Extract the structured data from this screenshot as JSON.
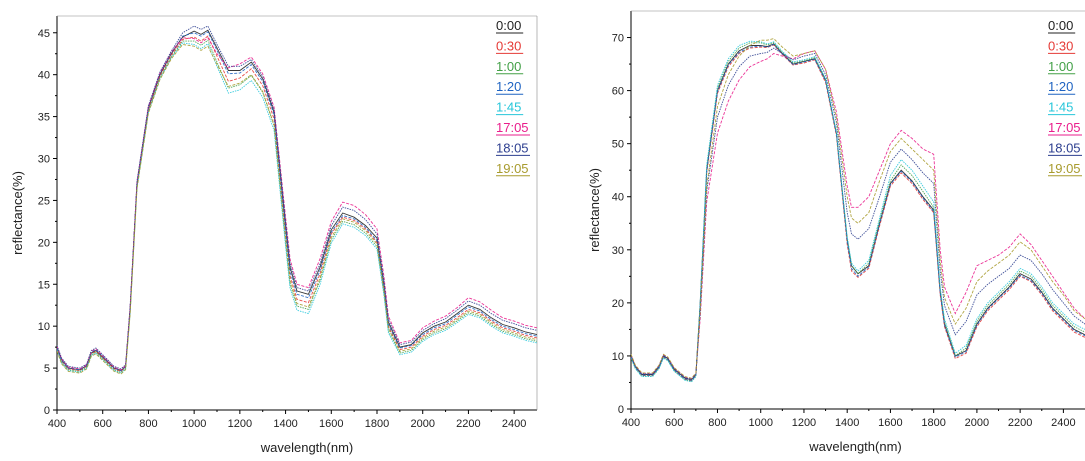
{
  "chart_data": [
    {
      "type": "line",
      "title": "",
      "xlabel": "wavelength(nm)",
      "ylabel": "reflectance(%)",
      "xlim": [
        400,
        2500
      ],
      "ylim": [
        0,
        47
      ],
      "xticks": [
        400,
        600,
        800,
        1000,
        1200,
        1400,
        1600,
        1800,
        2000,
        2200,
        2400
      ],
      "yticks": [
        0,
        5,
        10,
        15,
        20,
        25,
        30,
        35,
        40,
        45
      ],
      "grid": false,
      "legend_position": "top-right",
      "x": [
        400,
        420,
        450,
        500,
        530,
        550,
        570,
        600,
        650,
        680,
        700,
        720,
        750,
        800,
        850,
        900,
        950,
        1000,
        1030,
        1060,
        1100,
        1150,
        1200,
        1250,
        1300,
        1350,
        1400,
        1420,
        1450,
        1500,
        1550,
        1600,
        1650,
        1700,
        1750,
        1800,
        1830,
        1850,
        1900,
        1950,
        2000,
        2050,
        2100,
        2150,
        2200,
        2250,
        2300,
        2350,
        2400,
        2450,
        2500
      ],
      "series": [
        {
          "name": "0:00",
          "color": "#222222",
          "values": [
            7.5,
            6.0,
            5.0,
            4.8,
            5.3,
            6.8,
            7.1,
            6.3,
            5.0,
            4.7,
            5.2,
            12,
            27,
            36,
            40,
            42.5,
            44.5,
            45.2,
            44.8,
            45.3,
            43.2,
            40.5,
            40.5,
            41.5,
            39.5,
            35.5,
            22,
            17,
            14.2,
            13.8,
            17,
            21.5,
            23.5,
            23,
            22,
            20.5,
            15,
            10.5,
            7.5,
            7.8,
            9.2,
            10,
            10.5,
            11.5,
            12.5,
            12,
            11,
            10.2,
            9.8,
            9.3,
            9.0
          ]
        },
        {
          "name": "0:30",
          "color": "#e53935",
          "values": [
            7.3,
            5.8,
            4.9,
            4.7,
            5.2,
            6.7,
            7.0,
            6.2,
            4.9,
            4.6,
            5.1,
            11.8,
            26.8,
            35.8,
            39.8,
            42.3,
            44.2,
            44.5,
            44.0,
            44.6,
            42.2,
            39.2,
            39.6,
            40.7,
            38.7,
            34.7,
            21,
            16,
            13.2,
            12.8,
            16.2,
            21,
            23,
            22.6,
            21.6,
            20,
            14.5,
            10,
            7.2,
            7.5,
            8.8,
            9.6,
            10.1,
            11,
            12,
            11.6,
            10.6,
            9.8,
            9.4,
            8.9,
            8.6
          ]
        },
        {
          "name": "1:00",
          "color": "#43a047",
          "values": [
            7.2,
            5.7,
            4.8,
            4.6,
            5.1,
            6.6,
            6.9,
            6.1,
            4.8,
            4.5,
            5.0,
            11.6,
            26.6,
            35.6,
            39.6,
            42.1,
            44.0,
            44.0,
            43.5,
            44.1,
            41.5,
            38.4,
            38.8,
            39.9,
            37.9,
            33.9,
            20,
            15,
            12.4,
            12.0,
            15.4,
            20.3,
            22.5,
            22.1,
            21.1,
            19.5,
            14,
            9.5,
            6.8,
            7.1,
            8.4,
            9.2,
            9.7,
            10.6,
            11.6,
            11.2,
            10.2,
            9.4,
            9.0,
            8.5,
            8.2
          ]
        },
        {
          "name": "1:20",
          "color": "#1e63c2",
          "values": [
            7.4,
            5.9,
            5.0,
            4.8,
            5.3,
            6.9,
            7.2,
            6.4,
            5.0,
            4.7,
            5.2,
            12.1,
            27.1,
            36.1,
            40.1,
            42.6,
            44.6,
            45.0,
            44.6,
            45.1,
            42.9,
            40.1,
            40.2,
            41.2,
            39.2,
            35.2,
            21.5,
            16.5,
            13.8,
            13.4,
            16.6,
            21.2,
            23.2,
            22.8,
            21.8,
            20.2,
            14.7,
            10.2,
            7.4,
            7.7,
            9.0,
            9.8,
            10.3,
            11.3,
            12.3,
            11.8,
            10.8,
            10.0,
            9.6,
            9.1,
            8.8
          ]
        },
        {
          "name": "1:45",
          "color": "#26c6da",
          "values": [
            7.1,
            5.6,
            4.7,
            4.5,
            5.0,
            6.5,
            6.8,
            6.0,
            4.7,
            4.4,
            4.9,
            11.5,
            26.5,
            35.5,
            39.5,
            42.0,
            43.8,
            43.6,
            43.1,
            43.7,
            41.0,
            37.8,
            38.2,
            39.3,
            37.3,
            33.3,
            19.5,
            14.5,
            11.9,
            11.5,
            14.9,
            19.9,
            22.2,
            21.8,
            20.8,
            19.2,
            13.7,
            9.2,
            6.6,
            6.9,
            8.2,
            9.0,
            9.5,
            10.4,
            11.4,
            11.0,
            10.0,
            9.2,
            8.8,
            8.3,
            8.0
          ]
        },
        {
          "name": "17:05",
          "color": "#e91e8c",
          "values": [
            7.6,
            6.1,
            5.1,
            4.9,
            5.4,
            7.0,
            7.3,
            6.5,
            5.1,
            4.8,
            5.3,
            12.2,
            27.2,
            36.2,
            40.2,
            42.7,
            44.4,
            44.3,
            43.8,
            44.4,
            42.5,
            40.8,
            41.3,
            42.1,
            40.1,
            36.1,
            23,
            18,
            15.0,
            14.6,
            18.0,
            22.5,
            24.8,
            24.4,
            23.3,
            21.6,
            16,
            11.2,
            8.0,
            8.3,
            9.8,
            10.6,
            11.2,
            12.2,
            13.4,
            12.9,
            11.9,
            11.0,
            10.6,
            10.1,
            9.8
          ]
        },
        {
          "name": "18:05",
          "color": "#2c3e8f",
          "values": [
            7.7,
            6.2,
            5.2,
            5.0,
            5.5,
            7.1,
            7.4,
            6.6,
            5.2,
            4.9,
            5.4,
            12.3,
            27.3,
            36.3,
            40.3,
            42.8,
            45.0,
            45.8,
            45.4,
            45.8,
            43.6,
            41.0,
            41.0,
            41.8,
            39.8,
            35.8,
            22.5,
            17.5,
            14.6,
            14.2,
            17.4,
            22.0,
            24.2,
            23.8,
            22.7,
            21.0,
            15.5,
            10.8,
            7.8,
            8.1,
            9.5,
            10.3,
            10.9,
            11.9,
            13.0,
            12.5,
            11.5,
            10.7,
            10.3,
            9.8,
            9.5
          ]
        },
        {
          "name": "19:05",
          "color": "#a89b2e",
          "values": [
            7.0,
            5.5,
            4.6,
            4.4,
            4.9,
            6.4,
            6.7,
            5.9,
            4.6,
            4.3,
            4.8,
            11.4,
            26.4,
            35.4,
            39.4,
            41.9,
            43.6,
            43.4,
            42.9,
            43.4,
            41.2,
            38.6,
            39.0,
            40.0,
            38.0,
            34.0,
            20.5,
            15.5,
            12.7,
            12.3,
            15.7,
            20.6,
            22.8,
            22.4,
            21.4,
            19.8,
            14.3,
            9.8,
            7.0,
            7.3,
            8.6,
            9.4,
            9.9,
            10.8,
            11.8,
            11.4,
            10.4,
            9.6,
            9.2,
            8.7,
            8.4
          ]
        }
      ]
    },
    {
      "type": "line",
      "title": "",
      "xlabel": "wavelength(nm)",
      "ylabel": "reflectance(%)",
      "xlim": [
        400,
        2500
      ],
      "ylim": [
        0,
        75
      ],
      "xticks": [
        400,
        600,
        800,
        1000,
        1200,
        1400,
        1600,
        1800,
        2000,
        2200,
        2400
      ],
      "yticks": [
        0,
        10,
        20,
        30,
        40,
        50,
        60,
        70
      ],
      "grid": false,
      "legend_position": "top-right",
      "x": [
        400,
        420,
        450,
        500,
        530,
        550,
        570,
        600,
        650,
        680,
        700,
        720,
        750,
        800,
        850,
        900,
        950,
        1000,
        1030,
        1060,
        1100,
        1150,
        1200,
        1250,
        1300,
        1350,
        1400,
        1420,
        1450,
        1500,
        1550,
        1600,
        1650,
        1700,
        1750,
        1800,
        1830,
        1850,
        1900,
        1950,
        2000,
        2050,
        2100,
        2150,
        2200,
        2250,
        2300,
        2350,
        2400,
        2450,
        2500
      ],
      "series": [
        {
          "name": "0:00",
          "color": "#222222",
          "values": [
            10,
            8.0,
            6.5,
            6.5,
            8.0,
            10.0,
            9.5,
            7.5,
            5.8,
            5.5,
            6.5,
            20,
            45,
            60,
            65,
            67.5,
            68.5,
            68.5,
            68.3,
            68.8,
            67,
            65,
            65.5,
            66,
            62,
            52,
            32,
            27,
            25.5,
            27,
            35,
            42.5,
            45,
            43,
            40,
            37.5,
            22,
            16,
            10,
            11,
            16,
            19,
            21,
            23,
            25.5,
            24.5,
            22,
            19,
            17,
            15,
            14
          ]
        },
        {
          "name": "0:30",
          "color": "#e53935",
          "values": [
            9.8,
            7.8,
            6.3,
            6.3,
            7.8,
            9.8,
            9.3,
            7.3,
            5.6,
            5.3,
            6.3,
            19.5,
            44.5,
            59.5,
            64.5,
            67,
            68,
            68.2,
            68.1,
            68.6,
            66.8,
            64.8,
            65.2,
            65.8,
            61.5,
            51.5,
            31,
            26,
            24.8,
            26.5,
            34.5,
            42,
            44.5,
            42.5,
            39.5,
            37,
            21.5,
            15.5,
            9.5,
            10.5,
            15.5,
            18.5,
            20.5,
            22.5,
            25,
            24,
            21.5,
            18.5,
            16.5,
            14.5,
            13.5
          ]
        },
        {
          "name": "1:00",
          "color": "#43a047",
          "values": [
            9.7,
            7.7,
            6.2,
            6.2,
            7.7,
            9.7,
            9.2,
            7.2,
            5.5,
            5.2,
            6.2,
            19.8,
            45.5,
            60.5,
            65.5,
            68,
            69,
            69,
            68.6,
            69,
            67.2,
            65.2,
            65.6,
            66.2,
            62,
            52,
            32,
            27,
            25.5,
            27.5,
            35.5,
            43,
            46,
            44,
            41,
            38,
            22.5,
            16.5,
            10,
            11.5,
            16.5,
            19.5,
            21.5,
            23.5,
            26,
            25,
            22.5,
            19.5,
            17.5,
            15.5,
            14.5
          ]
        },
        {
          "name": "1:20",
          "color": "#1e63c2",
          "values": [
            9.9,
            7.9,
            6.4,
            6.4,
            7.9,
            9.9,
            9.4,
            7.4,
            5.7,
            5.4,
            6.4,
            19.6,
            44.8,
            59.8,
            64.8,
            67.2,
            68.2,
            68.4,
            68.2,
            68.7,
            66.9,
            64.9,
            65.4,
            65.9,
            61.8,
            51.8,
            31.5,
            26.5,
            25,
            26.8,
            34.8,
            42.3,
            44.8,
            42.8,
            39.8,
            37.2,
            21.8,
            15.8,
            9.8,
            10.8,
            15.8,
            18.8,
            20.8,
            22.8,
            25.2,
            24.2,
            21.8,
            18.8,
            16.8,
            14.8,
            13.8
          ]
        },
        {
          "name": "1:45",
          "color": "#26c6da",
          "values": [
            9.6,
            7.6,
            6.1,
            6.1,
            7.6,
            9.6,
            9.1,
            7.1,
            5.4,
            5.1,
            6.1,
            20.2,
            46,
            61,
            66,
            68.5,
            69.3,
            69.2,
            68.8,
            69.2,
            67.4,
            65.4,
            65.8,
            66.4,
            62.3,
            52.3,
            32.5,
            27.5,
            26,
            28,
            36,
            44,
            47,
            45,
            42,
            39,
            23,
            17,
            10.5,
            12,
            17,
            20,
            22,
            24,
            26.5,
            25.5,
            23,
            20,
            18,
            16,
            15
          ]
        },
        {
          "name": "17:05",
          "color": "#e91e8c",
          "values": [
            10.2,
            8.2,
            6.7,
            6.7,
            8.2,
            10.2,
            9.7,
            7.7,
            6.0,
            5.7,
            6.7,
            17,
            39,
            52,
            58,
            62,
            64.5,
            65.5,
            66,
            67,
            66.5,
            66,
            67,
            67.5,
            64,
            56,
            42,
            38,
            38,
            40,
            45,
            50,
            52.5,
            51,
            49,
            48,
            30,
            23,
            18,
            22,
            27,
            28,
            29,
            30.5,
            33,
            31,
            28,
            25,
            22,
            19,
            17
          ]
        },
        {
          "name": "18:05",
          "color": "#2c3e8f",
          "values": [
            10.1,
            8.1,
            6.6,
            6.6,
            8.1,
            10.1,
            9.6,
            7.6,
            5.9,
            5.6,
            6.6,
            18,
            41,
            55,
            61,
            64.5,
            66.5,
            67,
            67.2,
            68,
            67,
            65.8,
            66.5,
            67,
            63,
            54,
            37,
            33,
            32,
            34,
            40,
            46.5,
            49,
            47,
            44.5,
            42.5,
            26,
            19.5,
            14,
            16.5,
            21.5,
            23.5,
            25,
            26.5,
            29,
            28,
            25.5,
            22.5,
            20,
            17.5,
            16
          ]
        },
        {
          "name": "19:05",
          "color": "#a89b2e",
          "values": [
            10.3,
            8.3,
            6.8,
            6.8,
            8.3,
            10.3,
            9.8,
            7.8,
            6.1,
            5.8,
            6.8,
            18.5,
            42,
            57,
            63,
            66.5,
            68.5,
            69.5,
            69.5,
            69.8,
            68.2,
            66.5,
            67,
            67.5,
            64,
            55,
            40,
            36,
            35,
            37,
            43,
            48.5,
            51,
            49,
            47,
            45,
            28,
            21,
            16,
            19,
            24,
            26,
            27.5,
            29,
            31.5,
            30,
            27,
            24,
            21.5,
            18.5,
            17
          ]
        }
      ]
    }
  ]
}
